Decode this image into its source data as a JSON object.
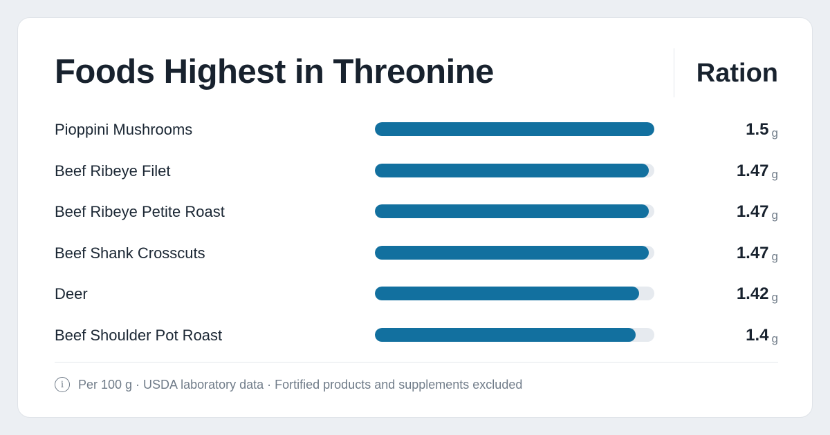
{
  "title": "Foods Highest in Threonine",
  "column_header": "Ration",
  "footnote": "Per 100 g · USDA laboratory data · Fortified products and supplements excluded",
  "icons": {
    "footnote_icon": "info-icon"
  },
  "colors": {
    "bar_fill": "#12709f",
    "bar_track": "#e6eaef"
  },
  "chart_data": {
    "type": "bar",
    "orientation": "horizontal",
    "title": "Foods Highest in Threonine",
    "value_header": "Ration",
    "unit": "g",
    "xlim": [
      0,
      1.5
    ],
    "categories": [
      "Pioppini Mushrooms",
      "Beef Ribeye Filet",
      "Beef Ribeye Petite Roast",
      "Beef Shank Crosscuts",
      "Deer",
      "Beef Shoulder Pot Roast"
    ],
    "values": [
      1.5,
      1.47,
      1.47,
      1.47,
      1.42,
      1.4
    ],
    "value_labels": [
      "1.5",
      "1.47",
      "1.47",
      "1.47",
      "1.42",
      "1.4"
    ],
    "grid": false,
    "legend": "none"
  }
}
